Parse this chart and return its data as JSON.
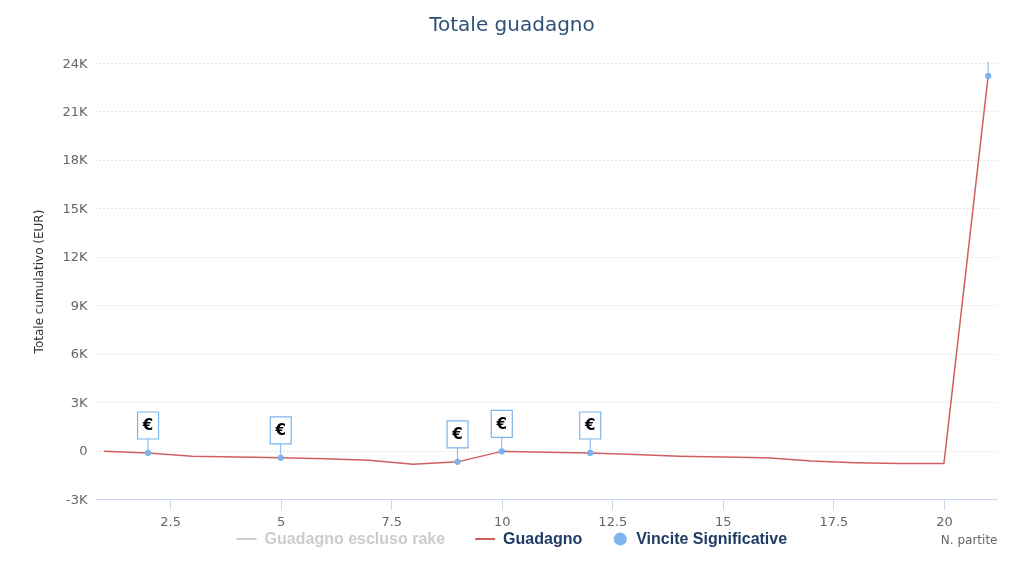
{
  "chart_data": {
    "type": "line",
    "title": "Totale guadagno",
    "xlabel": "N. partite",
    "ylabel": "Totale cumulativo (EUR)",
    "x": [
      1,
      2,
      3,
      4,
      5,
      6,
      7,
      8,
      9,
      10,
      11,
      12,
      13,
      14,
      15,
      16,
      17,
      18,
      19,
      20,
      21
    ],
    "xlim": [
      0.8,
      21.2
    ],
    "xticks": [
      2.5,
      5,
      7.5,
      10,
      12.5,
      15,
      17.5,
      20
    ],
    "ylim": [
      -3000,
      24000
    ],
    "yticks": [
      {
        "value": -3000,
        "label": "-3K"
      },
      0,
      {
        "value": 3000,
        "label": "3K"
      },
      {
        "value": 6000,
        "label": "6K"
      },
      {
        "value": 9000,
        "label": "9K"
      },
      {
        "value": 12000,
        "label": "12K"
      },
      {
        "value": 15000,
        "label": "15K"
      },
      {
        "value": 18000,
        "label": "18K"
      },
      {
        "value": 21000,
        "label": "21K"
      },
      {
        "value": 24000,
        "label": "24K"
      }
    ],
    "grid": "y",
    "legend": "bottom",
    "series": [
      {
        "name": "Guadagno escluso rake",
        "color": "#cccccc",
        "values": [
          null,
          null,
          null,
          null,
          null,
          null,
          null,
          null,
          null,
          null,
          null,
          null,
          null,
          null,
          null,
          null,
          null,
          null,
          null,
          null,
          null
        ]
      },
      {
        "name": "Guadagno",
        "color": "#d0605e",
        "values": [
          -50,
          -150,
          -350,
          -400,
          -450,
          -500,
          -600,
          -850,
          -700,
          -50,
          -100,
          -150,
          -250,
          -350,
          -400,
          -450,
          -650,
          -750,
          -800,
          -800,
          23200
        ]
      },
      {
        "name": "Vincite Significative",
        "type": "scatter",
        "color": "#7cb5ec",
        "x": [
          2,
          5,
          9,
          10,
          12,
          21
        ],
        "values": [
          -150,
          -450,
          -700,
          -50,
          -150,
          23200
        ]
      }
    ],
    "annotations": [
      {
        "text": "€",
        "x": 2,
        "y": -150
      },
      {
        "text": "€",
        "x": 5,
        "y": -450
      },
      {
        "text": "€",
        "x": 9,
        "y": -700
      },
      {
        "text": "€",
        "x": 10,
        "y": -50
      },
      {
        "text": "€",
        "x": 12,
        "y": -150
      }
    ]
  }
}
